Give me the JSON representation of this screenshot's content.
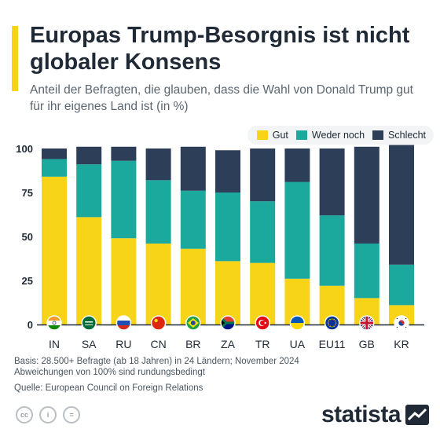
{
  "header": {
    "title": "Europas Trump-Besorgnis ist nicht globaler Konsens",
    "subtitle": "Anteil der Befragten, die glauben, dass die Wahl von Donald Trump gut für ihr eigenes Land ist (in %)"
  },
  "colors": {
    "gut": "#f7d417",
    "weder": "#1aa99c",
    "schlecht": "#2c3e58",
    "accent": "#f7d417"
  },
  "chart_data": {
    "type": "bar",
    "stacked": true,
    "categories": [
      "IN",
      "SA",
      "RU",
      "CN",
      "BR",
      "ZA",
      "TR",
      "UA",
      "EU11",
      "GB",
      "KR"
    ],
    "series": [
      {
        "name": "Gut",
        "values": [
          84,
          61,
          49,
          46,
          43,
          36,
          35,
          26,
          22,
          15,
          11
        ]
      },
      {
        "name": "Weder noch",
        "values": [
          10,
          30,
          44,
          36,
          33,
          39,
          35,
          55,
          40,
          31,
          23
        ]
      },
      {
        "name": "Schlecht",
        "values": [
          6,
          10,
          8,
          18,
          25,
          24,
          30,
          19,
          38,
          55,
          68
        ]
      }
    ],
    "ylim": [
      0,
      100
    ],
    "yticks": [
      0,
      25,
      50,
      75,
      100
    ],
    "legend_position": "top-right",
    "grid": false
  },
  "flags": [
    "india-flag-icon",
    "saudi-arabia-flag-icon",
    "russia-flag-icon",
    "china-flag-icon",
    "brazil-flag-icon",
    "south-africa-flag-icon",
    "turkey-flag-icon",
    "ukraine-flag-icon",
    "eu-flag-icon",
    "uk-flag-icon",
    "south-korea-flag-icon"
  ],
  "footer": {
    "basis_line1": "Basis: 28.500+ Befragte (ab 18 Jahren) in 24 Ländern; November 2024",
    "basis_line2": "Abweichungen von 100% sind rundungsbedingt",
    "source": "Quelle: European Council on Foreign Relations"
  },
  "license_icons": [
    "cc",
    "i",
    "="
  ],
  "logo": {
    "text": "statista"
  }
}
